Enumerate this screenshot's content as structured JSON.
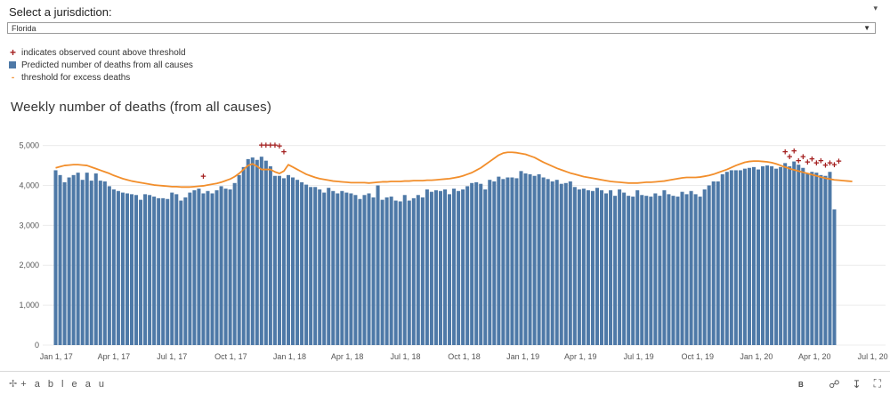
{
  "filter": {
    "label": "Select a jurisdiction:",
    "selected": "Florida",
    "arrow_icon": "caret-down-icon"
  },
  "legend": {
    "items": [
      {
        "symbol": "+",
        "label": "indicates observed count above threshold",
        "color": "#a31d1d"
      },
      {
        "symbol": "box",
        "label": "Predicted number of deaths from all causes",
        "color": "#4e79a7"
      },
      {
        "symbol": "-",
        "label": "threshold for excess deaths",
        "color": "#f28e2b"
      }
    ]
  },
  "chart_data": {
    "type": "bar",
    "title": "Weekly number of deaths (from all causes)",
    "xlabel": "",
    "ylabel": "",
    "ylim": [
      0,
      5000
    ],
    "y_ticks": [
      "0",
      "1,000",
      "2,000",
      "3,000",
      "4,000",
      "5,000"
    ],
    "x_tick_labels": [
      "Jan 1, 17",
      "Apr 1, 17",
      "Jul 1, 17",
      "Oct 1, 17",
      "Jan 1, 18",
      "Apr 1, 18",
      "Jul 1, 18",
      "Oct 1, 18",
      "Jan 1, 19",
      "Apr 1, 19",
      "Jul 1, 19",
      "Oct 1, 19",
      "Jan 1, 20",
      "Apr 1, 20",
      "Jul 1, 20"
    ],
    "grid": true,
    "series": [
      {
        "name": "Predicted number of deaths from all causes",
        "kind": "bar",
        "color": "#4e79a7",
        "values": [
          4380,
          4260,
          4080,
          4200,
          4260,
          4320,
          4140,
          4320,
          4120,
          4300,
          4120,
          4100,
          3980,
          3900,
          3860,
          3820,
          3800,
          3780,
          3760,
          3640,
          3780,
          3760,
          3720,
          3680,
          3680,
          3660,
          3820,
          3780,
          3620,
          3700,
          3820,
          3880,
          3920,
          3800,
          3860,
          3800,
          3880,
          3980,
          3920,
          3900,
          4060,
          4260,
          4460,
          4660,
          4700,
          4640,
          4720,
          4620,
          4480,
          4240,
          4240,
          4180,
          4260,
          4200,
          4140,
          4080,
          4020,
          3960,
          3960,
          3900,
          3820,
          3940,
          3860,
          3800,
          3860,
          3820,
          3800,
          3760,
          3660,
          3760,
          3800,
          3700,
          4000,
          3640,
          3700,
          3720,
          3620,
          3600,
          3760,
          3620,
          3680,
          3760,
          3700,
          3900,
          3840,
          3880,
          3860,
          3900,
          3780,
          3920,
          3860,
          3900,
          3980,
          4060,
          4080,
          4040,
          3900,
          4140,
          4100,
          4220,
          4160,
          4200,
          4200,
          4180,
          4360,
          4300,
          4280,
          4240,
          4280,
          4200,
          4160,
          4100,
          4140,
          4040,
          4060,
          4100,
          3960,
          3900,
          3920,
          3880,
          3860,
          3940,
          3880,
          3800,
          3880,
          3740,
          3900,
          3820,
          3740,
          3720,
          3880,
          3760,
          3740,
          3720,
          3800,
          3740,
          3880,
          3780,
          3740,
          3720,
          3840,
          3780,
          3860,
          3780,
          3720,
          3900,
          4000,
          4100,
          4100,
          4280,
          4340,
          4380,
          4380,
          4380,
          4420,
          4440,
          4460,
          4400,
          4480,
          4500,
          4480,
          4420,
          4460,
          4560,
          4480,
          4600,
          4520,
          4440,
          4300,
          4340,
          4320,
          4260,
          4240,
          4340,
          3400
        ]
      },
      {
        "name": "threshold for excess deaths",
        "kind": "line",
        "color": "#f28e2b",
        "values": [
          4440,
          4470,
          4500,
          4510,
          4520,
          4520,
          4510,
          4500,
          4460,
          4420,
          4380,
          4340,
          4300,
          4250,
          4210,
          4170,
          4140,
          4110,
          4090,
          4070,
          4050,
          4030,
          4010,
          4000,
          3990,
          3980,
          3970,
          3970,
          3960,
          3960,
          3960,
          3970,
          3980,
          3990,
          4010,
          4030,
          4050,
          4080,
          4120,
          4160,
          4220,
          4300,
          4400,
          4500,
          4540,
          4480,
          4400,
          4400,
          4400,
          4340,
          4300,
          4360,
          4520,
          4460,
          4400,
          4340,
          4280,
          4240,
          4200,
          4170,
          4150,
          4130,
          4110,
          4100,
          4090,
          4080,
          4070,
          4070,
          4070,
          4070,
          4060,
          4070,
          4080,
          4090,
          4090,
          4100,
          4100,
          4100,
          4110,
          4110,
          4120,
          4120,
          4120,
          4130,
          4130,
          4140,
          4150,
          4160,
          4170,
          4190,
          4210,
          4240,
          4280,
          4320,
          4380,
          4440,
          4520,
          4600,
          4680,
          4760,
          4810,
          4830,
          4830,
          4820,
          4800,
          4780,
          4740,
          4700,
          4640,
          4580,
          4530,
          4480,
          4430,
          4390,
          4350,
          4310,
          4280,
          4250,
          4220,
          4200,
          4180,
          4160,
          4140,
          4120,
          4100,
          4090,
          4080,
          4070,
          4060,
          4060,
          4060,
          4070,
          4080,
          4080,
          4090,
          4100,
          4110,
          4130,
          4150,
          4170,
          4190,
          4200,
          4200,
          4200,
          4210,
          4230,
          4250,
          4280,
          4320,
          4360,
          4400,
          4450,
          4500,
          4540,
          4580,
          4600,
          4610,
          4610,
          4600,
          4590,
          4570,
          4540,
          4500,
          4460,
          4420,
          4390,
          4360,
          4330,
          4300,
          4270,
          4240,
          4210,
          4180,
          4160,
          4140,
          4130,
          4120,
          4110,
          4100
        ]
      },
      {
        "name": "indicates observed count above threshold",
        "kind": "marker",
        "color": "#a31d1d",
        "points": [
          [
            33,
            4140
          ],
          [
            46,
            4920
          ],
          [
            47,
            4920
          ],
          [
            48,
            4920
          ],
          [
            49,
            4920
          ],
          [
            50,
            4900
          ],
          [
            51,
            4760
          ],
          [
            163,
            4760
          ],
          [
            164,
            4640
          ],
          [
            165,
            4780
          ],
          [
            166,
            4540
          ],
          [
            167,
            4640
          ],
          [
            168,
            4500
          ],
          [
            169,
            4580
          ],
          [
            170,
            4480
          ],
          [
            171,
            4540
          ],
          [
            172,
            4420
          ],
          [
            173,
            4480
          ],
          [
            174,
            4440
          ],
          [
            175,
            4520
          ]
        ]
      }
    ]
  },
  "footer": {
    "logo_text": "+ a b l e a u",
    "badge": "B"
  }
}
